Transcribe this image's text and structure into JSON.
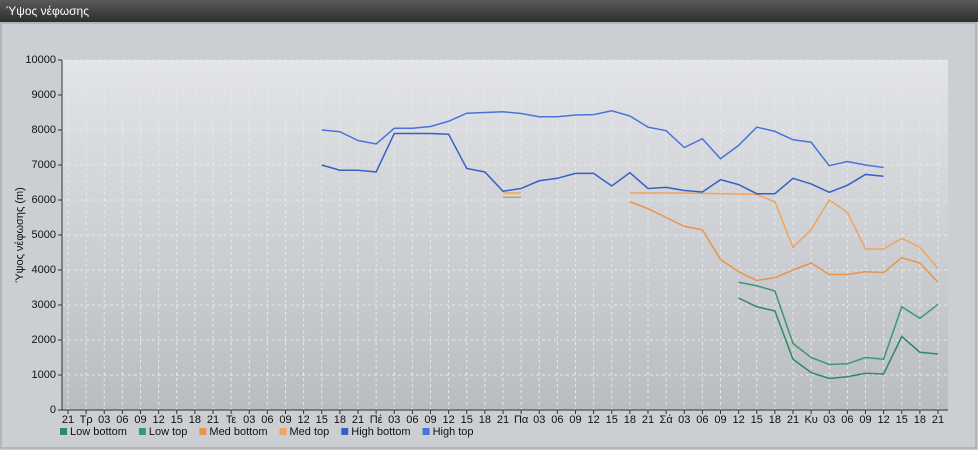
{
  "window": {
    "title": "Ύψος νέφωσης"
  },
  "chart_data": {
    "type": "line",
    "y_label": "Ύψος νέφωσης (m)",
    "categories": [
      "21",
      "Τρ",
      "03",
      "06",
      "09",
      "12",
      "15",
      "18",
      "21",
      "Τε",
      "03",
      "06",
      "09",
      "12",
      "15",
      "18",
      "21",
      "Πέ",
      "03",
      "06",
      "09",
      "12",
      "15",
      "18",
      "21",
      "Πα",
      "03",
      "06",
      "09",
      "12",
      "15",
      "18",
      "21",
      "Σά",
      "03",
      "06",
      "09",
      "12",
      "15",
      "18",
      "21",
      "Κυ",
      "03",
      "06",
      "09",
      "12",
      "15",
      "18",
      "21"
    ],
    "ylim": [
      0,
      10000
    ],
    "yticks": [
      0,
      1000,
      2000,
      3000,
      4000,
      5000,
      6000,
      7000,
      8000,
      9000,
      10000
    ],
    "grid": true,
    "legend": "bottom-left",
    "series": [
      {
        "name": "Low bottom",
        "color": "#2e8b5f",
        "values": [
          null,
          null,
          null,
          null,
          null,
          null,
          null,
          null,
          null,
          null,
          null,
          null,
          null,
          null,
          null,
          null,
          null,
          null,
          null,
          null,
          null,
          null,
          null,
          null,
          null,
          null,
          null,
          null,
          null,
          null,
          null,
          null,
          null,
          null,
          null,
          null,
          null,
          3200,
          2950,
          2830,
          1450,
          1070,
          900,
          950,
          1050,
          1030,
          2100,
          1650,
          1600
        ]
      },
      {
        "name": "Low top",
        "color": "#3a9a6e",
        "values": [
          null,
          null,
          null,
          null,
          null,
          null,
          null,
          null,
          null,
          null,
          null,
          null,
          null,
          null,
          null,
          null,
          null,
          null,
          null,
          null,
          null,
          null,
          null,
          null,
          null,
          null,
          null,
          null,
          null,
          null,
          null,
          null,
          null,
          null,
          null,
          null,
          null,
          3650,
          3550,
          3400,
          1900,
          1500,
          1300,
          1320,
          1500,
          1450,
          2950,
          2620,
          3020
        ]
      },
      {
        "name": "Med bottom",
        "color": "#e8954a",
        "values": [
          null,
          null,
          null,
          null,
          null,
          null,
          null,
          null,
          null,
          null,
          null,
          null,
          null,
          null,
          null,
          null,
          null,
          null,
          null,
          null,
          null,
          null,
          null,
          null,
          6080,
          6080,
          null,
          null,
          null,
          null,
          null,
          5950,
          5750,
          5500,
          5250,
          5150,
          4300,
          3950,
          3700,
          3780,
          4000,
          4200,
          3870,
          3870,
          3950,
          3930,
          4350,
          4200,
          3650
        ]
      },
      {
        "name": "Med top",
        "color": "#f0a55a",
        "values": [
          null,
          null,
          null,
          null,
          null,
          null,
          null,
          null,
          null,
          null,
          null,
          null,
          null,
          null,
          null,
          null,
          null,
          null,
          null,
          null,
          null,
          null,
          null,
          null,
          6200,
          6200,
          null,
          null,
          null,
          null,
          null,
          6200,
          6200,
          6200,
          6200,
          6190,
          6180,
          6170,
          6160,
          5950,
          4650,
          5150,
          6000,
          5650,
          4600,
          4600,
          4900,
          4650,
          4050
        ]
      },
      {
        "name": "High bottom",
        "color": "#3560c8",
        "values": [
          null,
          null,
          null,
          null,
          null,
          null,
          null,
          null,
          null,
          null,
          null,
          null,
          null,
          null,
          7000,
          6850,
          6850,
          6800,
          7900,
          7900,
          7900,
          7880,
          6900,
          6800,
          6250,
          6330,
          6550,
          6620,
          6760,
          6760,
          6400,
          6780,
          6330,
          6360,
          6270,
          6230,
          6580,
          6440,
          6180,
          6180,
          6620,
          6460,
          6220,
          6420,
          6730,
          6680,
          null,
          null,
          null
        ]
      },
      {
        "name": "High top",
        "color": "#4a72da",
        "values": [
          null,
          null,
          null,
          null,
          null,
          null,
          null,
          null,
          null,
          null,
          null,
          null,
          null,
          null,
          8000,
          7950,
          7700,
          7600,
          8050,
          8050,
          8100,
          8250,
          8480,
          8500,
          8520,
          8470,
          8380,
          8380,
          8430,
          8440,
          8550,
          8400,
          8080,
          7980,
          7500,
          7750,
          7180,
          7560,
          8080,
          7960,
          7720,
          7650,
          6980,
          7100,
          7000,
          6930,
          null,
          null,
          null
        ]
      }
    ]
  }
}
